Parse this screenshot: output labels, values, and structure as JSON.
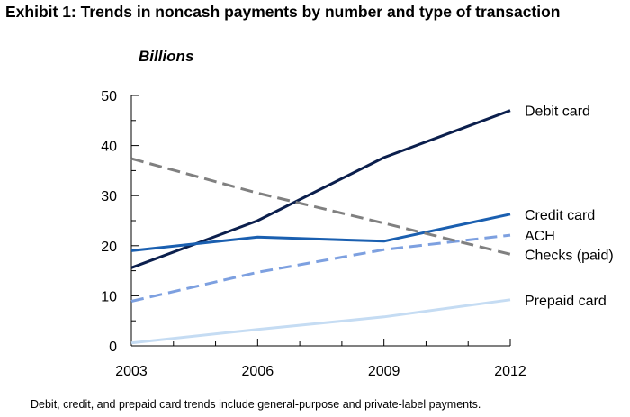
{
  "chart_data": {
    "type": "line",
    "title": "Exhibit 1:  Trends in noncash payments by number and type of transaction",
    "ylabel": "Billions",
    "xlabel": "",
    "x": [
      2003,
      2006,
      2009,
      2012
    ],
    "xticks": [
      "2003",
      "2006",
      "2009",
      "2012"
    ],
    "ylim": [
      0,
      50
    ],
    "yticks": [
      "0",
      "10",
      "20",
      "30",
      "40",
      "50"
    ],
    "grid": false,
    "legend": "direct labels at right end of lines",
    "series": [
      {
        "name": "Debit card",
        "values": [
          15.6,
          25.0,
          37.6,
          47.0
        ],
        "color": "#0b1f4d",
        "dash": false
      },
      {
        "name": "Credit card",
        "values": [
          19.0,
          21.7,
          20.9,
          26.3
        ],
        "color": "#1a5fb0",
        "dash": false
      },
      {
        "name": "ACH",
        "values": [
          8.9,
          14.7,
          19.2,
          22.1
        ],
        "color": "#7da0e0",
        "dash": true
      },
      {
        "name": "Checks (paid)",
        "values": [
          37.4,
          30.5,
          24.5,
          18.3
        ],
        "color": "#808080",
        "dash": true
      },
      {
        "name": "Prepaid card",
        "values": [
          0.6,
          3.3,
          5.8,
          9.2
        ],
        "color": "#c5dcf3",
        "dash": false
      }
    ],
    "note": "Debit, credit, and prepaid card trends include general-purpose and private-label payments."
  }
}
